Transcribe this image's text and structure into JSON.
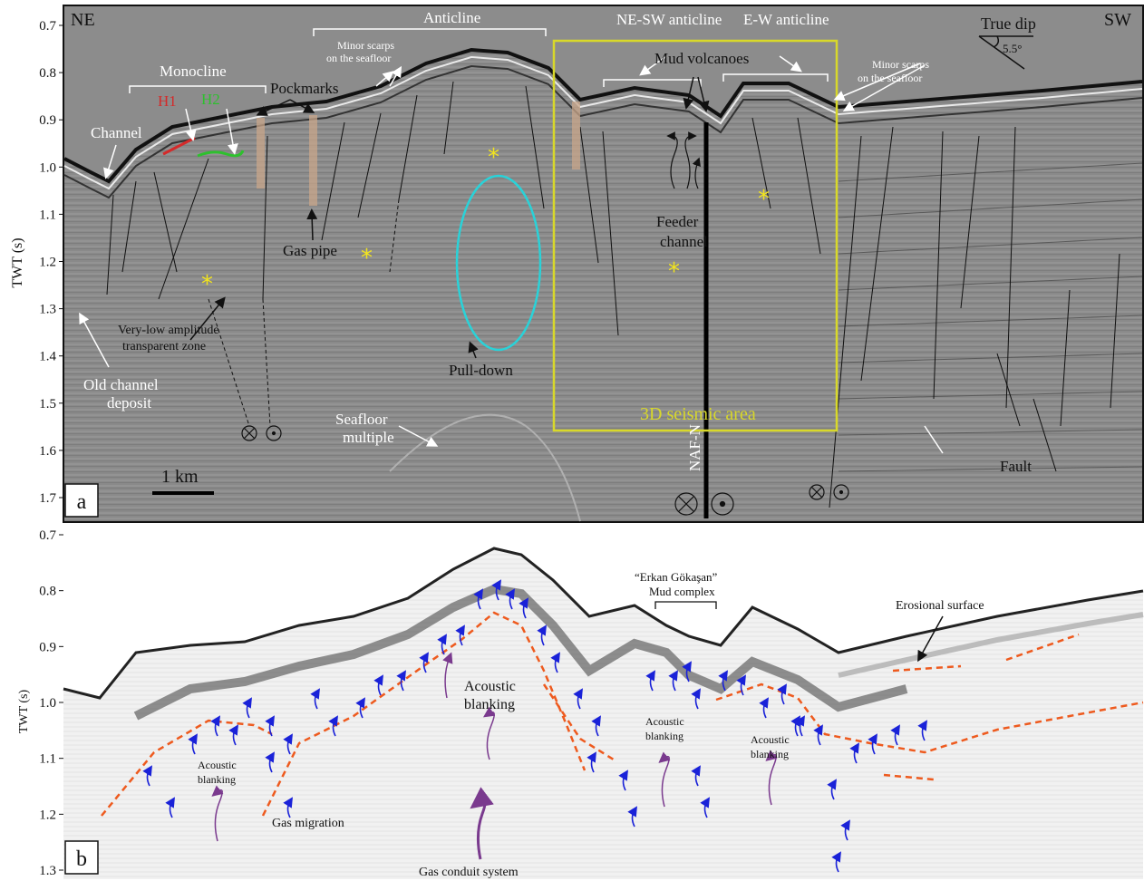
{
  "panel_a": {
    "letter": "a",
    "axis_label": "TWT (s)",
    "ticks": [
      "0.7",
      "0.8",
      "0.9",
      "1.0",
      "1.1",
      "1.2",
      "1.3",
      "1.4",
      "1.5",
      "1.6",
      "1.7"
    ],
    "corner_left": "NE",
    "corner_right": "SW",
    "true_dip": {
      "title": "True dip",
      "angle": "5.5°"
    },
    "scale_bar": "1 km",
    "labels": {
      "monocline": "Monocline",
      "anticline": "Anticline",
      "ne_sw_anticline": "NE-SW  anticline",
      "e_w_anticline": "E-W  anticline",
      "mud_volcanoes": "Mud volcanoes",
      "pockmarks": "Pockmarks",
      "minor_scarps_left_1": "Minor scarps",
      "minor_scarps_left_2": "on the seafloor",
      "minor_scarps_right_1": "Minor scarps",
      "minor_scarps_right_2": "on the seafloor",
      "h1": "H1",
      "h2": "H2",
      "channel": "Channel",
      "gas_pipe": "Gas pipe",
      "feeder_channel_1": "Feeder",
      "feeder_channel_2": "channel",
      "very_low_1": "Very-low amplitude",
      "very_low_2": "transparent zone",
      "old_channel_1": "Old channel",
      "old_channel_2": "deposit",
      "pull_down": "Pull-down",
      "seafloor_multiple_1": "Seafloor",
      "seafloor_multiple_2": "multiple",
      "seismic_area": "3D seismic area",
      "naf_n": "NAF-N",
      "fault": "Fault"
    },
    "colors": {
      "h1": "#d42a2a",
      "h2": "#2ec02e",
      "box": "#d8d82a",
      "ellipse": "#2ad2d8",
      "asterisk": "#f2e41e",
      "pipe": "#c8a68a"
    }
  },
  "panel_b": {
    "letter": "b",
    "axis_label": "TWT (s)",
    "ticks": [
      "0.7",
      "0.8",
      "0.9",
      "1.0",
      "1.1",
      "1.2",
      "1.3"
    ],
    "labels": {
      "mud_complex_1": "“Erkan Gökaşan”",
      "mud_complex_2": "Mud complex",
      "erosional_surface": "Erosional surface",
      "acoustic_blanking_center_1": "Acoustic",
      "acoustic_blanking_center_2": "blanking",
      "acoustic_blanking_left_1": "Acoustic",
      "acoustic_blanking_left_2": "blanking",
      "acoustic_blanking_mid_1": "Acoustic",
      "acoustic_blanking_mid_2": "blanking",
      "acoustic_blanking_right_1": "Acoustic",
      "acoustic_blanking_right_2": "blanking",
      "gas_migration": "Gas migration",
      "gas_conduit": "Gas conduit system"
    },
    "colors": {
      "arrow": "#1a22d8",
      "purple": "#7a3a8e",
      "horizon": "#ee5a1e"
    }
  }
}
